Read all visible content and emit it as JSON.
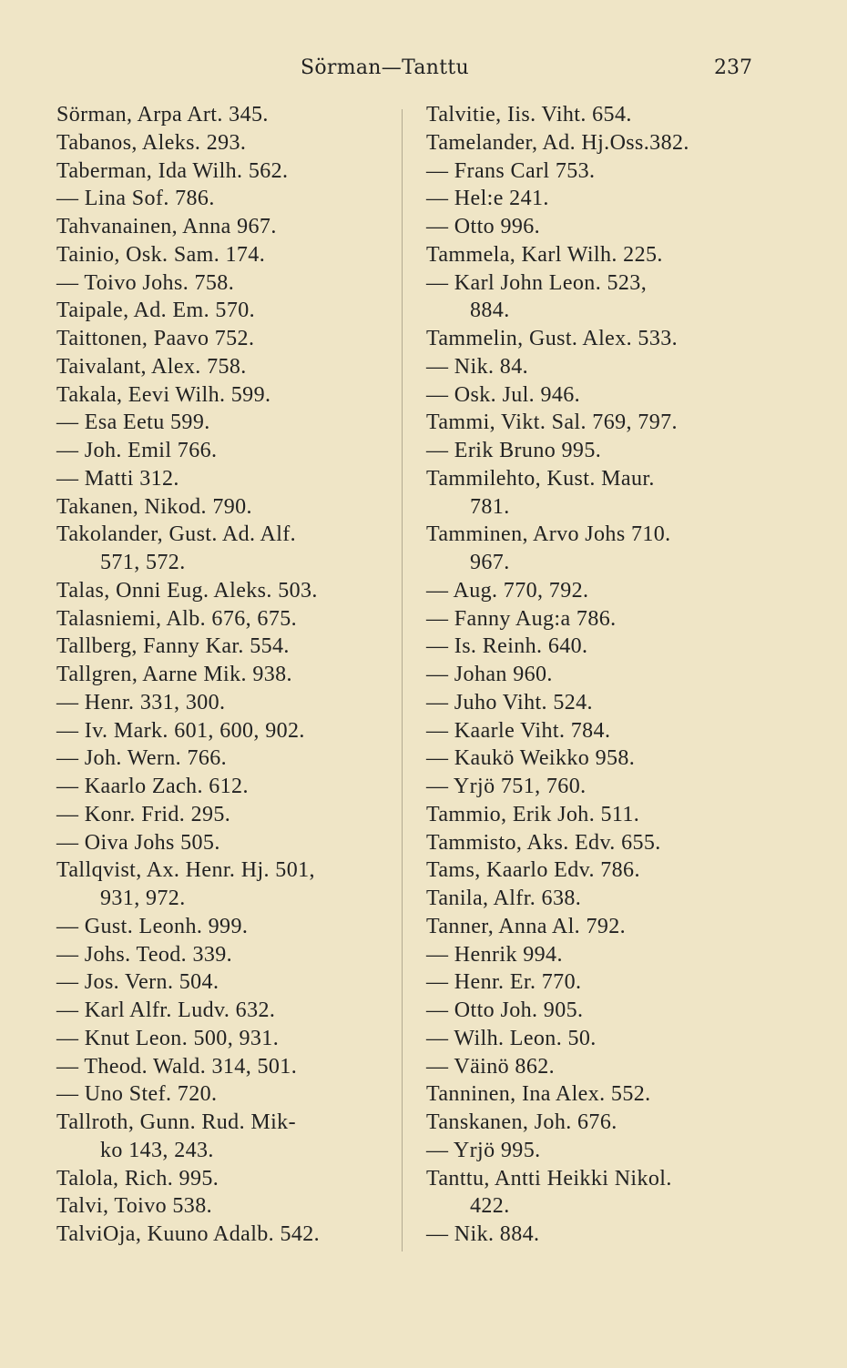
{
  "header": {
    "title": "Sörman—Tanttu",
    "page_number": "237"
  },
  "left_column": [
    {
      "text": "Sörman, Arpa Art. 345.",
      "indent": false
    },
    {
      "text": "Tabanos, Aleks. 293.",
      "indent": false
    },
    {
      "text": "Taberman, Ida Wilh. 562.",
      "indent": false
    },
    {
      "text": "— Lina Sof. 786.",
      "indent": false
    },
    {
      "text": "Tahvanainen, Anna 967.",
      "indent": false
    },
    {
      "text": "Tainio, Osk. Sam. 174.",
      "indent": false
    },
    {
      "text": "— Toivo Johs. 758.",
      "indent": false
    },
    {
      "text": "Taipale, Ad. Em. 570.",
      "indent": false
    },
    {
      "text": "Taittonen, Paavo 752.",
      "indent": false
    },
    {
      "text": "Taivalant, Alex. 758.",
      "indent": false
    },
    {
      "text": "Takala, Eevi Wilh. 599.",
      "indent": false
    },
    {
      "text": "— Esa Eetu 599.",
      "indent": false
    },
    {
      "text": "— Joh. Emil 766.",
      "indent": false
    },
    {
      "text": "— Matti 312.",
      "indent": false
    },
    {
      "text": "Takanen, Nikod. 790.",
      "indent": false
    },
    {
      "text": "Takolander, Gust. Ad. Alf.",
      "indent": false
    },
    {
      "text": "571, 572.",
      "indent": true
    },
    {
      "text": "Talas, Onni Eug. Aleks. 503.",
      "indent": false
    },
    {
      "text": "Talasniemi, Alb. 676, 675.",
      "indent": false
    },
    {
      "text": "Tallberg, Fanny Kar. 554.",
      "indent": false
    },
    {
      "text": "Tallgren, Aarne Mik. 938.",
      "indent": false
    },
    {
      "text": "— Henr. 331, 300.",
      "indent": false
    },
    {
      "text": "— Iv. Mark. 601, 600, 902.",
      "indent": false
    },
    {
      "text": "— Joh. Wern. 766.",
      "indent": false
    },
    {
      "text": "— Kaarlo Zach. 612.",
      "indent": false
    },
    {
      "text": "— Konr. Frid. 295.",
      "indent": false
    },
    {
      "text": "— Oiva Johs 505.",
      "indent": false
    },
    {
      "text": "Tallqvist, Ax. Henr. Hj. 501,",
      "indent": false
    },
    {
      "text": "931, 972.",
      "indent": true
    },
    {
      "text": "— Gust. Leonh. 999.",
      "indent": false
    },
    {
      "text": "— Johs. Teod. 339.",
      "indent": false
    },
    {
      "text": "— Jos. Vern. 504.",
      "indent": false
    },
    {
      "text": "— Karl Alfr. Ludv. 632.",
      "indent": false
    },
    {
      "text": "— Knut Leon. 500, 931.",
      "indent": false
    },
    {
      "text": "— Theod. Wald. 314, 501.",
      "indent": false
    },
    {
      "text": "— Uno Stef. 720.",
      "indent": false
    },
    {
      "text": "Tallroth, Gunn. Rud. Mik-",
      "indent": false
    },
    {
      "text": "ko 143, 243.",
      "indent": true
    },
    {
      "text": "Talola, Rich. 995.",
      "indent": false
    },
    {
      "text": "Talvi, Toivo 538.",
      "indent": false
    },
    {
      "text": "TalviOja, Kuuno Adalb. 542.",
      "indent": false
    }
  ],
  "right_column": [
    {
      "text": "Talvitie, Iis. Viht. 654.",
      "indent": false
    },
    {
      "text": "Tamelander, Ad. Hj.Oss.382.",
      "indent": false
    },
    {
      "text": "— Frans Carl 753.",
      "indent": false
    },
    {
      "text": "— Hel:e 241.",
      "indent": false
    },
    {
      "text": "— Otto 996.",
      "indent": false
    },
    {
      "text": "Tammela, Karl Wilh. 225.",
      "indent": false
    },
    {
      "text": "— Karl John Leon. 523,",
      "indent": false
    },
    {
      "text": "884.",
      "indent": true
    },
    {
      "text": "Tammelin, Gust. Alex. 533.",
      "indent": false
    },
    {
      "text": "— Nik. 84.",
      "indent": false
    },
    {
      "text": "— Osk. Jul. 946.",
      "indent": false
    },
    {
      "text": "Tammi, Vikt. Sal. 769, 797.",
      "indent": false
    },
    {
      "text": "— Erik Bruno 995.",
      "indent": false
    },
    {
      "text": "Tammilehto, Kust. Maur.",
      "indent": false
    },
    {
      "text": "781.",
      "indent": true
    },
    {
      "text": "Tamminen, Arvo Johs 710.",
      "indent": false
    },
    {
      "text": "967.",
      "indent": true
    },
    {
      "text": "— Aug. 770, 792.",
      "indent": false
    },
    {
      "text": "— Fanny Aug:a 786.",
      "indent": false
    },
    {
      "text": "— Is. Reinh. 640.",
      "indent": false
    },
    {
      "text": "— Johan 960.",
      "indent": false
    },
    {
      "text": "— Juho Viht. 524.",
      "indent": false
    },
    {
      "text": "— Kaarle Viht. 784.",
      "indent": false
    },
    {
      "text": "— Kaukö Weikko 958.",
      "indent": false
    },
    {
      "text": "— Yrjö 751, 760.",
      "indent": false
    },
    {
      "text": "Tammio, Erik Joh. 511.",
      "indent": false
    },
    {
      "text": "Tammisto, Aks. Edv. 655.",
      "indent": false
    },
    {
      "text": "Tams, Kaarlo Edv. 786.",
      "indent": false
    },
    {
      "text": "Tanila, Alfr. 638.",
      "indent": false
    },
    {
      "text": "Tanner, Anna Al. 792.",
      "indent": false
    },
    {
      "text": "— Henrik 994.",
      "indent": false
    },
    {
      "text": "— Henr. Er. 770.",
      "indent": false
    },
    {
      "text": "— Otto Joh. 905.",
      "indent": false
    },
    {
      "text": "— Wilh. Leon. 50.",
      "indent": false
    },
    {
      "text": "— Väinö 862.",
      "indent": false
    },
    {
      "text": "Tanninen, Ina Alex. 552.",
      "indent": false
    },
    {
      "text": "Tanskanen, Joh. 676.",
      "indent": false
    },
    {
      "text": "— Yrjö 995.",
      "indent": false
    },
    {
      "text": "Tanttu, Antti Heikki Nikol.",
      "indent": false
    },
    {
      "text": "422.",
      "indent": true
    },
    {
      "text": "— Nik. 884.",
      "indent": false
    }
  ]
}
